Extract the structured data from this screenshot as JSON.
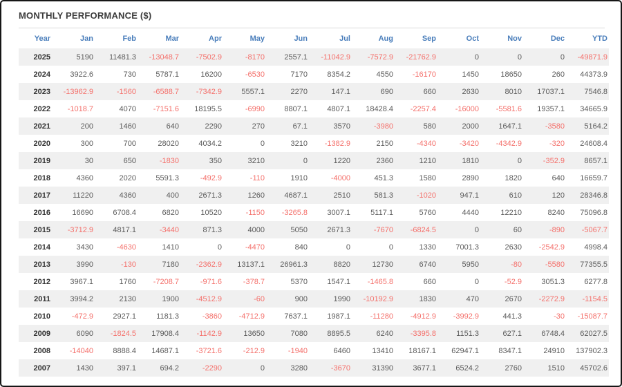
{
  "title": "MONTHLY PERFORMANCE ($)",
  "colors": {
    "title": "#3c3c3c",
    "header_text": "#4a7ebb",
    "positive_value": "#5a5a5a",
    "year_text": "#333333",
    "negative_value": "#f4706b",
    "row_stripe": "#f0f0f0",
    "panel_border": "#161616"
  },
  "table": {
    "columns": [
      "Year",
      "Jan",
      "Feb",
      "Mar",
      "Apr",
      "May",
      "Jun",
      "Jul",
      "Aug",
      "Sep",
      "Oct",
      "Nov",
      "Dec",
      "YTD"
    ],
    "rows": [
      {
        "year": "2025",
        "values": [
          "5190",
          "11481.3",
          "-13048.7",
          "-7502.9",
          "-8170",
          "2557.1",
          "-11042.9",
          "-7572.9",
          "-21762.9",
          "0",
          "0",
          "0",
          "-49871.9"
        ]
      },
      {
        "year": "2024",
        "values": [
          "3922.6",
          "730",
          "5787.1",
          "16200",
          "-6530",
          "7170",
          "8354.2",
          "4550",
          "-16170",
          "1450",
          "18650",
          "260",
          "44373.9"
        ]
      },
      {
        "year": "2023",
        "values": [
          "-13962.9",
          "-1560",
          "-6588.7",
          "-7342.9",
          "5557.1",
          "2270",
          "147.1",
          "690",
          "660",
          "2630",
          "8010",
          "17037.1",
          "7546.8"
        ]
      },
      {
        "year": "2022",
        "values": [
          "-1018.7",
          "4070",
          "-7151.6",
          "18195.5",
          "-6990",
          "8807.1",
          "4807.1",
          "18428.4",
          "-2257.4",
          "-16000",
          "-5581.6",
          "19357.1",
          "34665.9"
        ]
      },
      {
        "year": "2021",
        "values": [
          "200",
          "1460",
          "640",
          "2290",
          "270",
          "67.1",
          "3570",
          "-3980",
          "580",
          "2000",
          "1647.1",
          "-3580",
          "5164.2"
        ]
      },
      {
        "year": "2020",
        "values": [
          "300",
          "700",
          "28020",
          "4034.2",
          "0",
          "3210",
          "-1382.9",
          "2150",
          "-4340",
          "-3420",
          "-4342.9",
          "-320",
          "24608.4"
        ]
      },
      {
        "year": "2019",
        "values": [
          "30",
          "650",
          "-1830",
          "350",
          "3210",
          "0",
          "1220",
          "2360",
          "1210",
          "1810",
          "0",
          "-352.9",
          "8657.1"
        ]
      },
      {
        "year": "2018",
        "values": [
          "4360",
          "2020",
          "5591.3",
          "-492.9",
          "-110",
          "1910",
          "-4000",
          "451.3",
          "1580",
          "2890",
          "1820",
          "640",
          "16659.7"
        ]
      },
      {
        "year": "2017",
        "values": [
          "11220",
          "4360",
          "400",
          "2671.3",
          "1260",
          "4687.1",
          "2510",
          "581.3",
          "-1020",
          "947.1",
          "610",
          "120",
          "28346.8"
        ]
      },
      {
        "year": "2016",
        "values": [
          "16690",
          "6708.4",
          "6820",
          "10520",
          "-1150",
          "-3265.8",
          "3007.1",
          "5117.1",
          "5760",
          "4440",
          "12210",
          "8240",
          "75096.8"
        ]
      },
      {
        "year": "2015",
        "values": [
          "-3712.9",
          "4817.1",
          "-3440",
          "871.3",
          "4000",
          "5050",
          "2671.3",
          "-7670",
          "-6824.5",
          "0",
          "60",
          "-890",
          "-5067.7"
        ]
      },
      {
        "year": "2014",
        "values": [
          "3430",
          "-4630",
          "1410",
          "0",
          "-4470",
          "840",
          "0",
          "0",
          "1330",
          "7001.3",
          "2630",
          "-2542.9",
          "4998.4"
        ]
      },
      {
        "year": "2013",
        "values": [
          "3990",
          "-130",
          "7180",
          "-2362.9",
          "13137.1",
          "26961.3",
          "8820",
          "12730",
          "6740",
          "5950",
          "-80",
          "-5580",
          "77355.5"
        ]
      },
      {
        "year": "2012",
        "values": [
          "3967.1",
          "1760",
          "-7208.7",
          "-971.6",
          "-378.7",
          "5370",
          "1547.1",
          "-1465.8",
          "660",
          "0",
          "-52.9",
          "3051.3",
          "6277.8"
        ]
      },
      {
        "year": "2011",
        "values": [
          "3994.2",
          "2130",
          "1900",
          "-4512.9",
          "-60",
          "900",
          "1990",
          "-10192.9",
          "1830",
          "470",
          "2670",
          "-2272.9",
          "-1154.5"
        ]
      },
      {
        "year": "2010",
        "values": [
          "-472.9",
          "2927.1",
          "1181.3",
          "-3860",
          "-4712.9",
          "7637.1",
          "1987.1",
          "-11280",
          "-4912.9",
          "-3992.9",
          "441.3",
          "-30",
          "-15087.7"
        ]
      },
      {
        "year": "2009",
        "values": [
          "6090",
          "-1824.5",
          "17908.4",
          "-1142.9",
          "13650",
          "7080",
          "8895.5",
          "6240",
          "-3395.8",
          "1151.3",
          "627.1",
          "6748.4",
          "62027.5"
        ]
      },
      {
        "year": "2008",
        "values": [
          "-14040",
          "8888.4",
          "14687.1",
          "-3721.6",
          "-212.9",
          "-1940",
          "6460",
          "13410",
          "18167.1",
          "62947.1",
          "8347.1",
          "24910",
          "137902.3"
        ]
      },
      {
        "year": "2007",
        "values": [
          "1430",
          "397.1",
          "694.2",
          "-2290",
          "0",
          "3280",
          "-3670",
          "31390",
          "3677.1",
          "6524.2",
          "2760",
          "1510",
          "45702.6"
        ]
      }
    ]
  }
}
